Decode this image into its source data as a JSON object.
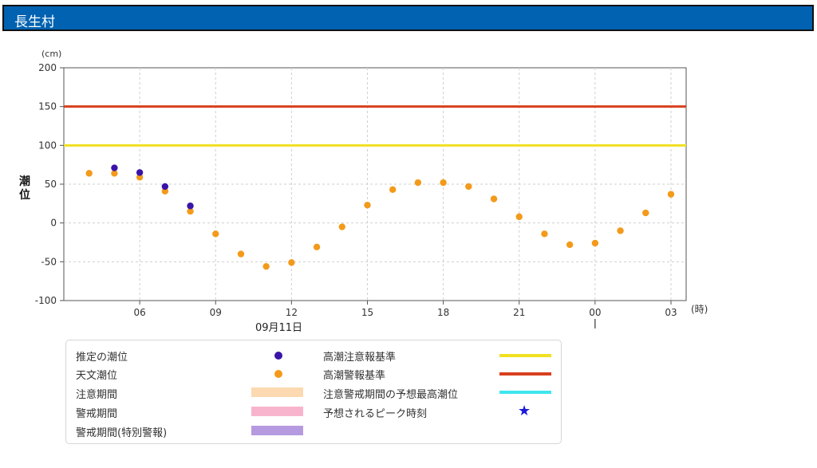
{
  "header": {
    "title": "長生村"
  },
  "chart_data": {
    "type": "scatter",
    "yunit": "(cm)",
    "ylabel": "潮位",
    "xunit": "(時)",
    "date_label": "09月11日",
    "ylim": [
      -100,
      200
    ],
    "yticks": [
      200,
      150,
      100,
      50,
      0,
      -50,
      -100
    ],
    "xticks": [
      {
        "h": 6,
        "label": "06"
      },
      {
        "h": 9,
        "label": "09"
      },
      {
        "h": 12,
        "label": "12"
      },
      {
        "h": 15,
        "label": "15"
      },
      {
        "h": 18,
        "label": "18"
      },
      {
        "h": 21,
        "label": "21"
      },
      {
        "h": 24,
        "label": "00"
      },
      {
        "h": 27,
        "label": "03"
      }
    ],
    "xlim": [
      3,
      27.6
    ],
    "grid": true,
    "thresholds": [
      {
        "name": "高潮注意報基準",
        "value": 100,
        "color": "#f0e020"
      },
      {
        "name": "高潮警報基準",
        "value": 150,
        "color": "#d8401e"
      }
    ],
    "series": [
      {
        "name": "推定の潮位",
        "color": "#3a14a8",
        "points": [
          [
            5,
            71
          ],
          [
            6,
            65
          ],
          [
            7,
            47
          ],
          [
            8,
            22
          ]
        ]
      },
      {
        "name": "天文潮位",
        "color": "#f39a1b",
        "points": [
          [
            4,
            64
          ],
          [
            5,
            64
          ],
          [
            6,
            59
          ],
          [
            7,
            41
          ],
          [
            8,
            15
          ],
          [
            9,
            -14
          ],
          [
            10,
            -40
          ],
          [
            11,
            -56
          ],
          [
            12,
            -51
          ],
          [
            13,
            -31
          ],
          [
            14,
            -5
          ],
          [
            15,
            23
          ],
          [
            16,
            43
          ],
          [
            17,
            52
          ],
          [
            18,
            52
          ],
          [
            19,
            47
          ],
          [
            20,
            31
          ],
          [
            21,
            8
          ],
          [
            22,
            -14
          ],
          [
            23,
            -28
          ],
          [
            24,
            -26
          ],
          [
            25,
            -10
          ],
          [
            26,
            13
          ],
          [
            27,
            37
          ]
        ]
      }
    ]
  },
  "legend": {
    "estimated": "推定の潮位",
    "astronomical": "天文潮位",
    "caution_period": "注意期間",
    "warning_period": "警戒期間",
    "special_warning_period": "警戒期間(特別警報)",
    "advisory_standard": "高潮注意報基準",
    "warning_standard": "高潮警報基準",
    "forecast_max": "注意警戒期間の予想最高潮位",
    "peak_time": "予想されるピーク時刻",
    "colors": {
      "estimated": "#3a14a8",
      "astronomical": "#f39a1b",
      "caution_period": "#fcd9b0",
      "warning_period": "#f8b4cc",
      "special_warning_period": "#b59ae0",
      "advisory_standard": "#f0e020",
      "warning_standard": "#d8401e",
      "forecast_max": "#3ee6ee",
      "peak_star": "#1a1adb"
    }
  }
}
